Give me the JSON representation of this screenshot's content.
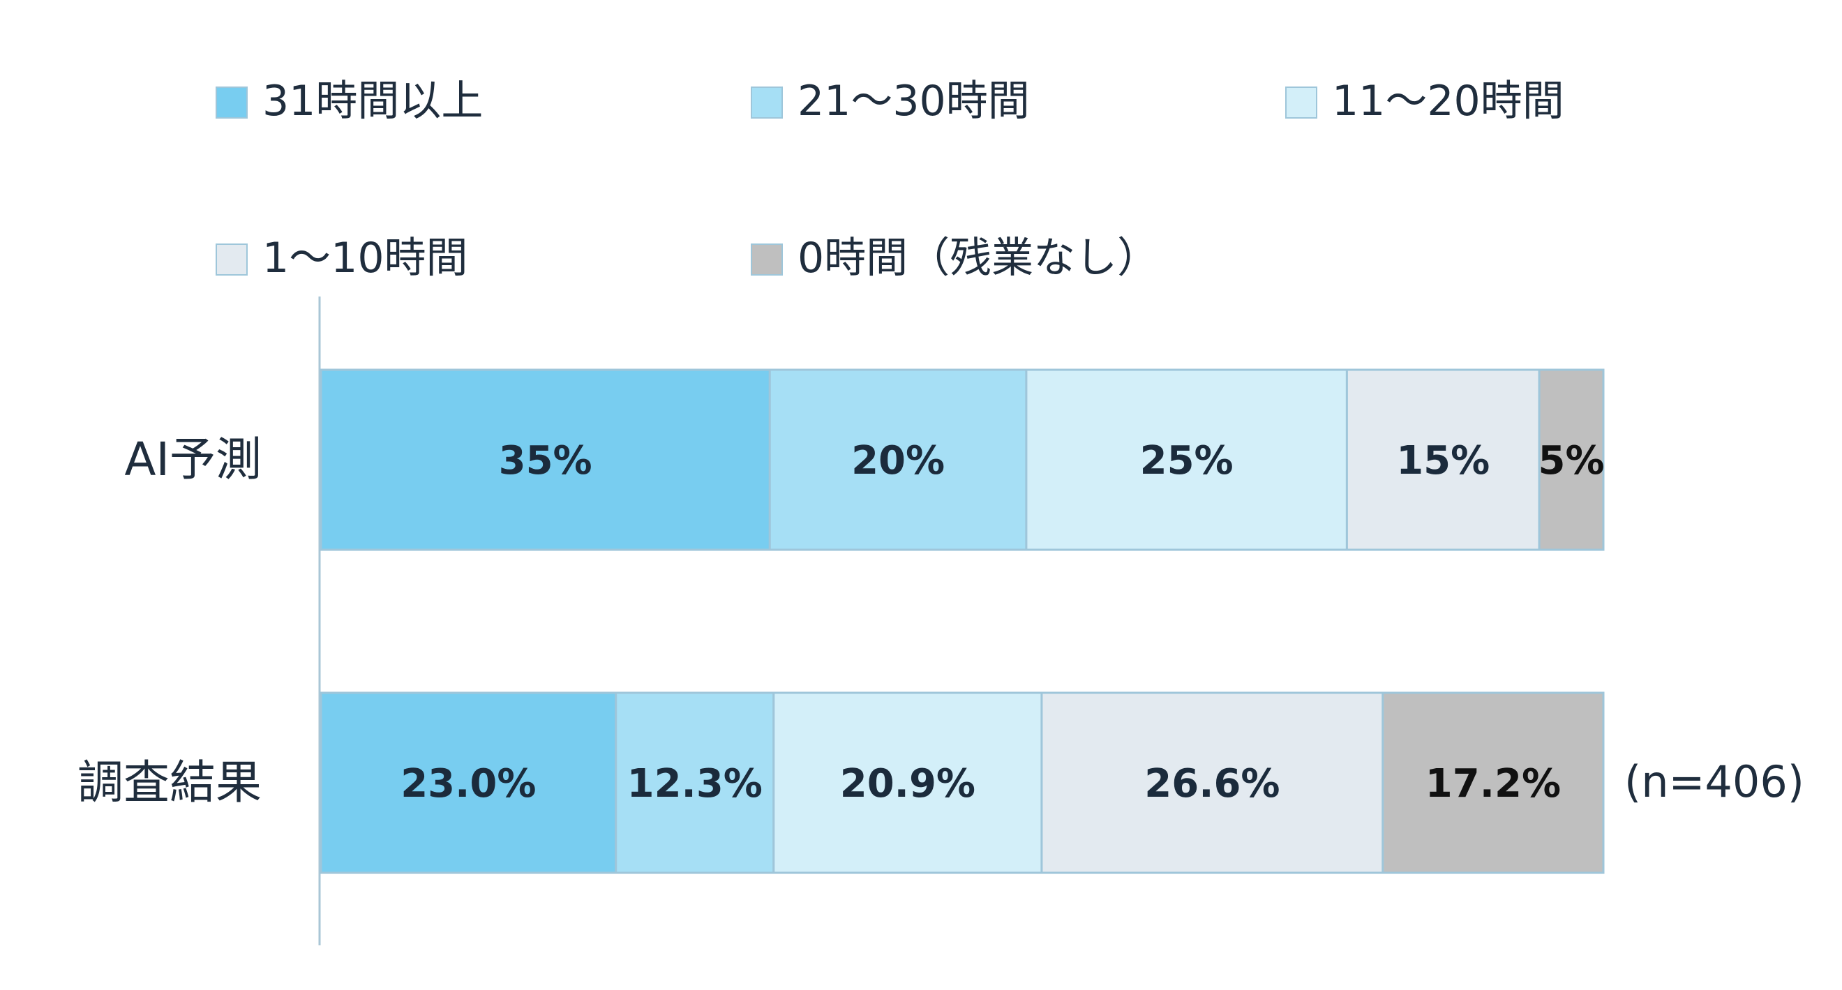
{
  "chart_data": {
    "type": "bar",
    "orientation": "horizontal",
    "stacked": "percent",
    "categories": [
      "AI予測",
      "調査結果"
    ],
    "series": [
      {
        "name": "31時間以上",
        "values": [
          35,
          23.0
        ],
        "labels": [
          "35%",
          "23.0%"
        ],
        "color": "#78cdf0"
      },
      {
        "name": "21～30時間",
        "values": [
          20,
          12.3
        ],
        "labels": [
          "20%",
          "12.3%"
        ],
        "color": "#a6dff5"
      },
      {
        "name": "11～20時間",
        "values": [
          25,
          20.9
        ],
        "labels": [
          "25%",
          "20.9%"
        ],
        "color": "#d3eff9"
      },
      {
        "name": "1～10時間",
        "values": [
          15,
          26.6
        ],
        "labels": [
          "15%",
          "26.6%"
        ],
        "color": "#e3eaf0"
      },
      {
        "name": "0時間（残業なし）",
        "values": [
          5,
          17.2
        ],
        "labels": [
          "5%",
          "17.2%"
        ],
        "color": "#bfbfbf"
      }
    ],
    "xlim": [
      0,
      100
    ],
    "legend": "top",
    "grid": false,
    "annotations": [
      {
        "category": "調査結果",
        "text": "(n=406)"
      }
    ]
  }
}
